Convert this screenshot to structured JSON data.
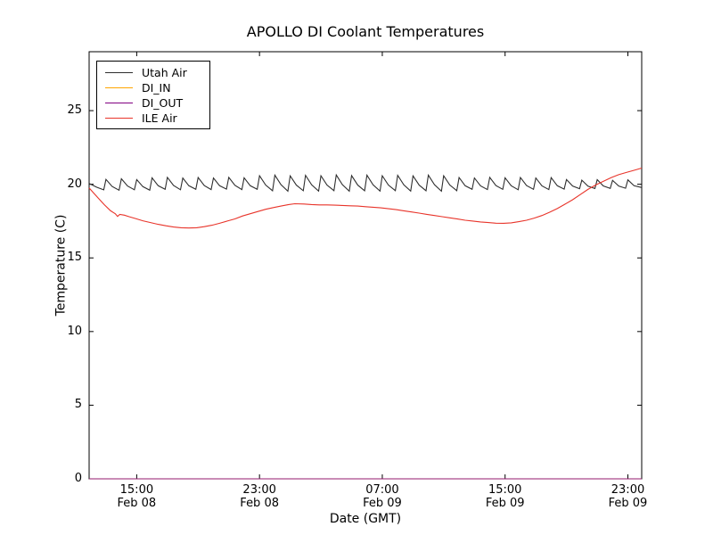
{
  "chart_data": {
    "type": "line",
    "title": "APOLLO DI Coolant Temperatures",
    "xlabel": "Date (GMT)",
    "ylabel": "Temperature (C)",
    "grid": false,
    "legend_position": "upper left",
    "ylim": [
      0,
      29
    ],
    "xlim_hours": [
      0,
      36
    ],
    "y_ticks": [
      0,
      5,
      10,
      15,
      20,
      25
    ],
    "x_ticks": [
      {
        "hour": 3.1,
        "time": "15:00",
        "date": "Feb 08"
      },
      {
        "hour": 11.1,
        "time": "23:00",
        "date": "Feb 08"
      },
      {
        "hour": 19.1,
        "time": "07:00",
        "date": "Feb 09"
      },
      {
        "hour": 27.1,
        "time": "15:00",
        "date": "Feb 09"
      },
      {
        "hour": 35.1,
        "time": "23:00",
        "date": "Feb 09"
      }
    ],
    "series": [
      {
        "name": "Utah Air",
        "color": "#2e2e2e",
        "points": [
          [
            0,
            20.05
          ],
          [
            0.5,
            19.8
          ],
          [
            0.95,
            19.62
          ],
          [
            1.1,
            20.33
          ],
          [
            1.5,
            19.85
          ],
          [
            1.95,
            19.6
          ],
          [
            2.1,
            20.37
          ],
          [
            2.5,
            19.88
          ],
          [
            2.95,
            19.63
          ],
          [
            3.1,
            20.32
          ],
          [
            3.5,
            19.84
          ],
          [
            3.95,
            19.6
          ],
          [
            4.1,
            20.44
          ],
          [
            4.5,
            19.9
          ],
          [
            4.95,
            19.66
          ],
          [
            5.1,
            20.47
          ],
          [
            5.5,
            19.92
          ],
          [
            5.95,
            19.63
          ],
          [
            6.1,
            20.42
          ],
          [
            6.5,
            19.9
          ],
          [
            6.95,
            19.66
          ],
          [
            7.1,
            20.46
          ],
          [
            7.5,
            19.91
          ],
          [
            7.95,
            19.64
          ],
          [
            8.1,
            20.43
          ],
          [
            8.5,
            19.9
          ],
          [
            8.95,
            19.67
          ],
          [
            9.1,
            20.47
          ],
          [
            9.5,
            19.93
          ],
          [
            9.95,
            19.64
          ],
          [
            10.1,
            20.44
          ],
          [
            10.5,
            19.9
          ],
          [
            10.95,
            19.66
          ],
          [
            11.1,
            20.58
          ],
          [
            11.5,
            19.95
          ],
          [
            11.95,
            19.56
          ],
          [
            12.1,
            20.62
          ],
          [
            12.5,
            19.97
          ],
          [
            12.95,
            19.53
          ],
          [
            13.1,
            20.57
          ],
          [
            13.5,
            19.94
          ],
          [
            13.95,
            19.56
          ],
          [
            14.1,
            20.61
          ],
          [
            14.5,
            19.96
          ],
          [
            14.95,
            19.54
          ],
          [
            15.1,
            20.58
          ],
          [
            15.5,
            19.95
          ],
          [
            15.95,
            19.57
          ],
          [
            16.1,
            20.63
          ],
          [
            16.5,
            19.97
          ],
          [
            16.95,
            19.53
          ],
          [
            17.1,
            20.59
          ],
          [
            17.5,
            19.94
          ],
          [
            17.95,
            19.56
          ],
          [
            18.1,
            20.62
          ],
          [
            18.5,
            19.96
          ],
          [
            18.95,
            19.54
          ],
          [
            19.1,
            20.58
          ],
          [
            19.5,
            19.95
          ],
          [
            19.95,
            19.57
          ],
          [
            20.1,
            20.61
          ],
          [
            20.5,
            19.96
          ],
          [
            20.95,
            19.54
          ],
          [
            21.1,
            20.57
          ],
          [
            21.5,
            19.94
          ],
          [
            21.95,
            19.56
          ],
          [
            22.1,
            20.62
          ],
          [
            22.5,
            19.97
          ],
          [
            22.95,
            19.53
          ],
          [
            23.1,
            20.58
          ],
          [
            23.5,
            19.95
          ],
          [
            23.95,
            19.57
          ],
          [
            24.1,
            20.46
          ],
          [
            24.5,
            19.9
          ],
          [
            24.95,
            19.66
          ],
          [
            25.1,
            20.43
          ],
          [
            25.5,
            19.89
          ],
          [
            25.95,
            19.64
          ],
          [
            26.1,
            20.47
          ],
          [
            26.5,
            19.91
          ],
          [
            26.95,
            19.66
          ],
          [
            27.1,
            20.44
          ],
          [
            27.5,
            19.9
          ],
          [
            27.95,
            19.63
          ],
          [
            28.1,
            20.46
          ],
          [
            28.5,
            19.91
          ],
          [
            28.95,
            19.66
          ],
          [
            29.1,
            20.43
          ],
          [
            29.5,
            19.89
          ],
          [
            29.95,
            19.64
          ],
          [
            30.1,
            20.45
          ],
          [
            30.5,
            19.9
          ],
          [
            30.95,
            19.67
          ],
          [
            31.1,
            20.32
          ],
          [
            31.5,
            19.88
          ],
          [
            31.95,
            19.7
          ],
          [
            32.1,
            20.28
          ],
          [
            32.5,
            19.87
          ],
          [
            32.95,
            19.71
          ],
          [
            33.1,
            20.31
          ],
          [
            33.5,
            19.89
          ],
          [
            33.95,
            19.72
          ],
          [
            34.1,
            20.27
          ],
          [
            34.5,
            19.88
          ],
          [
            34.95,
            19.73
          ],
          [
            35.1,
            20.3
          ],
          [
            35.5,
            19.9
          ],
          [
            36,
            19.78
          ]
        ]
      },
      {
        "name": "DI_IN",
        "color": "#ffa500",
        "points": [
          [
            0,
            0
          ],
          [
            36,
            0
          ]
        ]
      },
      {
        "name": "DI_OUT",
        "color": "#800080",
        "points": [
          [
            0,
            0
          ],
          [
            36,
            0
          ]
        ]
      },
      {
        "name": "ILE Air",
        "color": "#e8342a",
        "points": [
          [
            0,
            19.75
          ],
          [
            0.3,
            19.4
          ],
          [
            0.6,
            19.05
          ],
          [
            1.0,
            18.6
          ],
          [
            1.4,
            18.2
          ],
          [
            1.7,
            18.0
          ],
          [
            1.85,
            17.82
          ],
          [
            2.0,
            17.95
          ],
          [
            2.3,
            17.9
          ],
          [
            2.6,
            17.8
          ],
          [
            3.0,
            17.68
          ],
          [
            3.5,
            17.52
          ],
          [
            4.0,
            17.4
          ],
          [
            4.5,
            17.28
          ],
          [
            5.0,
            17.18
          ],
          [
            5.5,
            17.1
          ],
          [
            6.0,
            17.05
          ],
          [
            6.5,
            17.03
          ],
          [
            7.0,
            17.05
          ],
          [
            7.5,
            17.12
          ],
          [
            8.0,
            17.22
          ],
          [
            8.5,
            17.35
          ],
          [
            9.0,
            17.5
          ],
          [
            9.5,
            17.65
          ],
          [
            10.0,
            17.85
          ],
          [
            10.5,
            18.0
          ],
          [
            11.0,
            18.15
          ],
          [
            11.5,
            18.3
          ],
          [
            12.0,
            18.42
          ],
          [
            12.5,
            18.52
          ],
          [
            13.0,
            18.62
          ],
          [
            13.4,
            18.68
          ],
          [
            14.0,
            18.66
          ],
          [
            14.5,
            18.62
          ],
          [
            15.0,
            18.6
          ],
          [
            15.5,
            18.6
          ],
          [
            16.0,
            18.58
          ],
          [
            16.5,
            18.56
          ],
          [
            17.0,
            18.54
          ],
          [
            17.5,
            18.52
          ],
          [
            18.0,
            18.48
          ],
          [
            18.5,
            18.44
          ],
          [
            19.0,
            18.4
          ],
          [
            19.5,
            18.34
          ],
          [
            20.0,
            18.28
          ],
          [
            20.5,
            18.2
          ],
          [
            21.0,
            18.12
          ],
          [
            21.5,
            18.04
          ],
          [
            22.0,
            17.96
          ],
          [
            22.5,
            17.88
          ],
          [
            23.0,
            17.8
          ],
          [
            23.5,
            17.72
          ],
          [
            24.0,
            17.64
          ],
          [
            24.5,
            17.56
          ],
          [
            25.0,
            17.5
          ],
          [
            25.5,
            17.44
          ],
          [
            26.0,
            17.4
          ],
          [
            26.5,
            17.36
          ],
          [
            27.0,
            17.35
          ],
          [
            27.5,
            17.38
          ],
          [
            28.0,
            17.46
          ],
          [
            28.5,
            17.56
          ],
          [
            29.0,
            17.7
          ],
          [
            29.5,
            17.88
          ],
          [
            30.0,
            18.1
          ],
          [
            30.5,
            18.35
          ],
          [
            31.0,
            18.65
          ],
          [
            31.5,
            18.95
          ],
          [
            32.0,
            19.3
          ],
          [
            32.5,
            19.65
          ],
          [
            33.0,
            19.95
          ],
          [
            33.5,
            20.2
          ],
          [
            34.0,
            20.45
          ],
          [
            34.5,
            20.65
          ],
          [
            35.0,
            20.8
          ],
          [
            35.5,
            20.95
          ],
          [
            36,
            21.1
          ]
        ]
      }
    ]
  }
}
